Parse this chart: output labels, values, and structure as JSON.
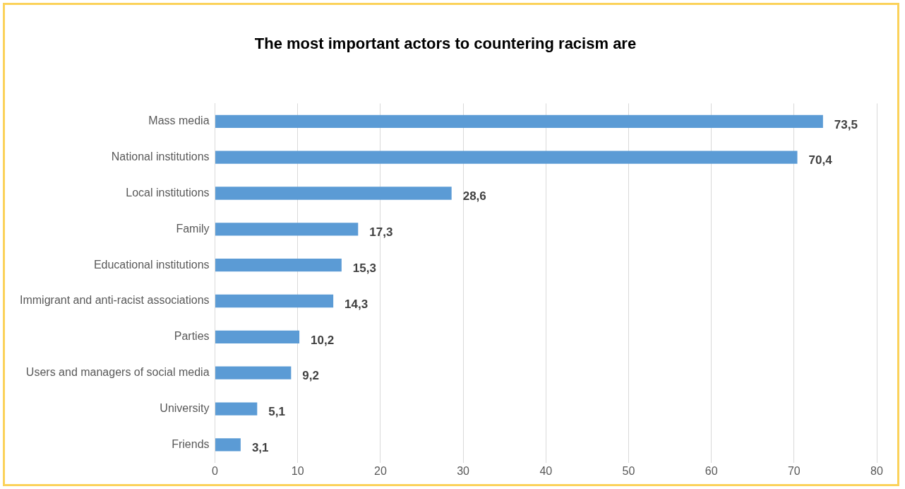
{
  "chart_data": {
    "type": "bar",
    "orientation": "horizontal",
    "title": "The most important actors to countering racism are",
    "categories": [
      "Mass media",
      "National institutions",
      "Local institutions",
      "Family",
      "Educational institutions",
      "Immigrant and anti-racist associations",
      "Parties",
      "Users and managers of social media",
      "University",
      "Friends"
    ],
    "values": [
      73.5,
      70.4,
      28.6,
      17.3,
      15.3,
      14.3,
      10.2,
      9.2,
      5.1,
      3.1
    ],
    "value_labels": [
      "73,5",
      "70,4",
      "28,6",
      "17,3",
      "15,3",
      "14,3",
      "10,2",
      "9,2",
      "5,1",
      "3,1"
    ],
    "color": "#5b9bd5",
    "xlim": [
      0,
      80
    ],
    "xticks": [
      0,
      10,
      20,
      30,
      40,
      50,
      60,
      70,
      80
    ],
    "grid": "x",
    "legend": false
  }
}
